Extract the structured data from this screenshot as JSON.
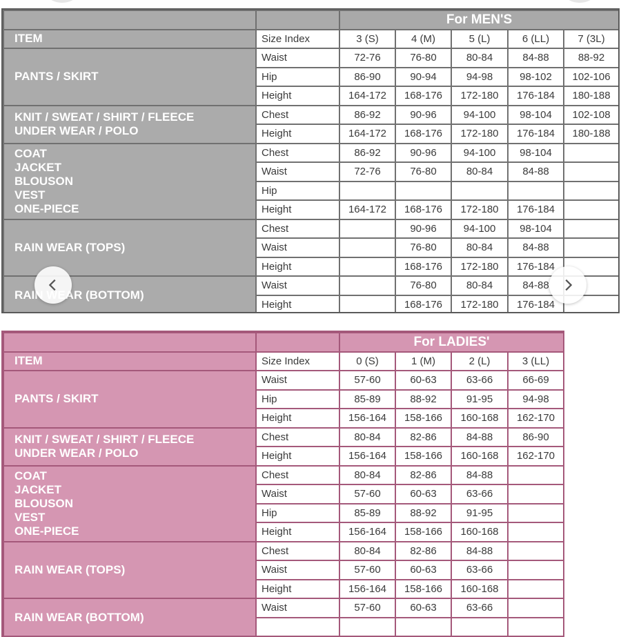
{
  "colors": {
    "men_header": "#ababab",
    "men_border": "#707070",
    "ladies_header": "#d596b2",
    "ladies_border": "#a4587a"
  },
  "men": {
    "title": "For MEN'S",
    "item_label": "ITEM",
    "size_index_label": "Size Index",
    "sizes": [
      "3 (S)",
      "4 (M)",
      "5 (L)",
      "6 (LL)",
      "7 (3L)"
    ],
    "groups": [
      {
        "item": "PANTS / SKIRT",
        "rows": [
          {
            "label": "Waist",
            "values": [
              "72-76",
              "76-80",
              "80-84",
              "84-88",
              "88-92"
            ]
          },
          {
            "label": "Hip",
            "values": [
              "86-90",
              "90-94",
              "94-98",
              "98-102",
              "102-106"
            ]
          },
          {
            "label": "Height",
            "values": [
              "164-172",
              "168-176",
              "172-180",
              "176-184",
              "180-188"
            ]
          }
        ]
      },
      {
        "item": "KNIT / SWEAT / SHIRT / FLEECE\nUNDER WEAR / POLO",
        "rows": [
          {
            "label": "Chest",
            "values": [
              "86-92",
              "90-96",
              "94-100",
              "98-104",
              "102-108"
            ]
          },
          {
            "label": "Height",
            "values": [
              "164-172",
              "168-176",
              "172-180",
              "176-184",
              "180-188"
            ]
          }
        ]
      },
      {
        "item": "COAT\nJACKET\nBLOUSON\nVEST\nONE-PIECE",
        "rows": [
          {
            "label": "Chest",
            "values": [
              "86-92",
              "90-96",
              "94-100",
              "98-104",
              ""
            ]
          },
          {
            "label": "Waist",
            "values": [
              "72-76",
              "76-80",
              "80-84",
              "84-88",
              ""
            ]
          },
          {
            "label": "Hip",
            "values": [
              "",
              "",
              "",
              "",
              ""
            ]
          },
          {
            "label": "Height",
            "values": [
              "164-172",
              "168-176",
              "172-180",
              "176-184",
              ""
            ]
          }
        ]
      },
      {
        "item": "RAIN WEAR (TOPS)",
        "rows": [
          {
            "label": "Chest",
            "values": [
              "",
              "90-96",
              "94-100",
              "98-104",
              ""
            ]
          },
          {
            "label": "Waist",
            "values": [
              "",
              "76-80",
              "80-84",
              "84-88",
              ""
            ]
          },
          {
            "label": "Height",
            "values": [
              "",
              "168-176",
              "172-180",
              "176-184",
              ""
            ]
          }
        ]
      },
      {
        "item": "RAIN WEAR (BOTTOM)",
        "rows": [
          {
            "label": "Waist",
            "values": [
              "",
              "76-80",
              "80-84",
              "84-88",
              ""
            ]
          },
          {
            "label": "Height",
            "values": [
              "",
              "168-176",
              "172-180",
              "176-184",
              ""
            ]
          }
        ]
      }
    ]
  },
  "ladies": {
    "title": "For LADIES'",
    "item_label": "ITEM",
    "size_index_label": "Size Index",
    "sizes": [
      "0 (S)",
      "1 (M)",
      "2 (L)",
      "3 (LL)"
    ],
    "groups": [
      {
        "item": "PANTS / SKIRT",
        "rows": [
          {
            "label": "Waist",
            "values": [
              "57-60",
              "60-63",
              "63-66",
              "66-69"
            ]
          },
          {
            "label": "Hip",
            "values": [
              "85-89",
              "88-92",
              "91-95",
              "94-98"
            ]
          },
          {
            "label": "Height",
            "values": [
              "156-164",
              "158-166",
              "160-168",
              "162-170"
            ]
          }
        ]
      },
      {
        "item": "KNIT / SWEAT / SHIRT / FLEECE\nUNDER WEAR / POLO",
        "rows": [
          {
            "label": "Chest",
            "values": [
              "80-84",
              "82-86",
              "84-88",
              "86-90"
            ]
          },
          {
            "label": "Height",
            "values": [
              "156-164",
              "158-166",
              "160-168",
              "162-170"
            ]
          }
        ]
      },
      {
        "item": "COAT\nJACKET\nBLOUSON\nVEST\nONE-PIECE",
        "rows": [
          {
            "label": "Chest",
            "values": [
              "80-84",
              "82-86",
              "84-88",
              ""
            ]
          },
          {
            "label": "Waist",
            "values": [
              "57-60",
              "60-63",
              "63-66",
              ""
            ]
          },
          {
            "label": "Hip",
            "values": [
              "85-89",
              "88-92",
              "91-95",
              ""
            ]
          },
          {
            "label": "Height",
            "values": [
              "156-164",
              "158-166",
              "160-168",
              ""
            ]
          }
        ]
      },
      {
        "item": "RAIN WEAR (TOPS)",
        "rows": [
          {
            "label": "Chest",
            "values": [
              "80-84",
              "82-86",
              "84-88",
              ""
            ]
          },
          {
            "label": "Waist",
            "values": [
              "57-60",
              "60-63",
              "63-66",
              ""
            ]
          },
          {
            "label": "Height",
            "values": [
              "156-164",
              "158-166",
              "160-168",
              ""
            ]
          }
        ]
      },
      {
        "item": "RAIN WEAR (BOTTOM)",
        "rows": [
          {
            "label": "Waist",
            "values": [
              "57-60",
              "60-63",
              "63-66",
              ""
            ]
          },
          {
            "label": "",
            "values": [
              "",
              "",
              "",
              ""
            ]
          }
        ]
      }
    ]
  },
  "carousel": {
    "prev_icon": "chevron-left-icon",
    "next_icon": "chevron-right-icon"
  }
}
